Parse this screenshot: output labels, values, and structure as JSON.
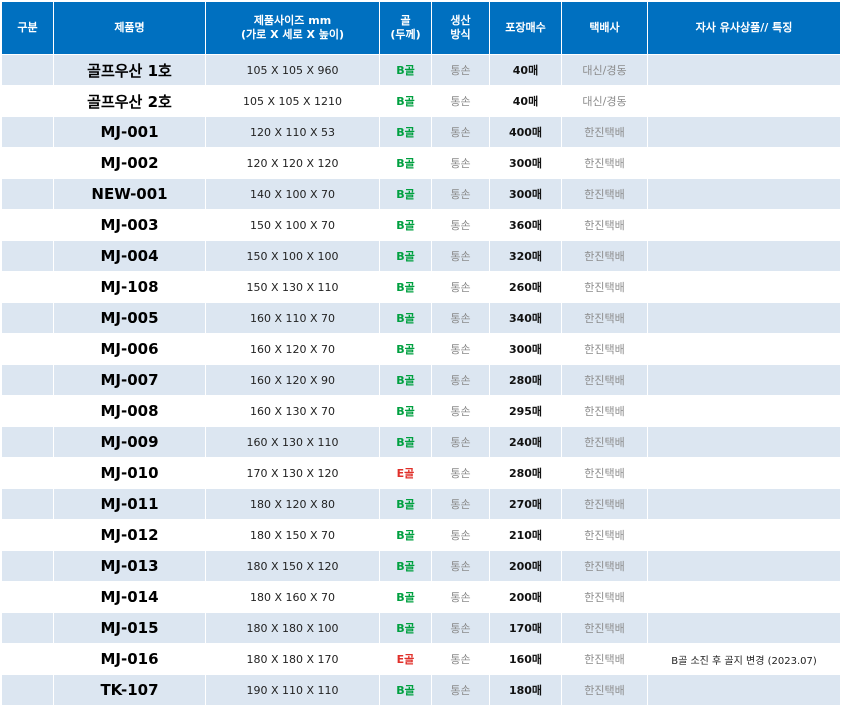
{
  "colors": {
    "header_bg": "#0070c0",
    "alt_row": "#dce6f1",
    "B": "#00a040",
    "E": "#e0302a"
  },
  "headers": [
    "구분",
    "제품명",
    "제품사이즈 mm\n(가로 X 세로 X 높이)",
    "골\n(두께)",
    "생산\n방식",
    "포장매수",
    "택배사",
    "자사 유사상품// 특징"
  ],
  "rows": [
    {
      "gubun": "",
      "name": "골프우산 1호",
      "size": "105 X 105 X 960",
      "goal": "B골",
      "method": "통손",
      "qty": "40매",
      "courier": "대신/경동",
      "note": ""
    },
    {
      "gubun": "",
      "name": "골프우산 2호",
      "size": "105 X 105 X 1210",
      "goal": "B골",
      "method": "통손",
      "qty": "40매",
      "courier": "대신/경동",
      "note": ""
    },
    {
      "gubun": "",
      "name": "MJ-001",
      "size": "120 X 110 X 53",
      "goal": "B골",
      "method": "통손",
      "qty": "400매",
      "courier": "한진택배",
      "note": ""
    },
    {
      "gubun": "",
      "name": "MJ-002",
      "size": "120 X 120 X 120",
      "goal": "B골",
      "method": "통손",
      "qty": "300매",
      "courier": "한진택배",
      "note": ""
    },
    {
      "gubun": "",
      "name": "NEW-001",
      "size": "140 X 100 X 70",
      "goal": "B골",
      "method": "통손",
      "qty": "300매",
      "courier": "한진택배",
      "note": ""
    },
    {
      "gubun": "",
      "name": "MJ-003",
      "size": "150 X 100 X 70",
      "goal": "B골",
      "method": "통손",
      "qty": "360매",
      "courier": "한진택배",
      "note": ""
    },
    {
      "gubun": "",
      "name": "MJ-004",
      "size": "150 X 100 X 100",
      "goal": "B골",
      "method": "통손",
      "qty": "320매",
      "courier": "한진택배",
      "note": ""
    },
    {
      "gubun": "",
      "name": "MJ-108",
      "size": "150 X 130 X 110",
      "goal": "B골",
      "method": "통손",
      "qty": "260매",
      "courier": "한진택배",
      "note": ""
    },
    {
      "gubun": "",
      "name": "MJ-005",
      "size": "160 X 110 X 70",
      "goal": "B골",
      "method": "통손",
      "qty": "340매",
      "courier": "한진택배",
      "note": ""
    },
    {
      "gubun": "",
      "name": "MJ-006",
      "size": "160 X 120 X 70",
      "goal": "B골",
      "method": "통손",
      "qty": "300매",
      "courier": "한진택배",
      "note": ""
    },
    {
      "gubun": "",
      "name": "MJ-007",
      "size": "160 X 120 X 90",
      "goal": "B골",
      "method": "통손",
      "qty": "280매",
      "courier": "한진택배",
      "note": ""
    },
    {
      "gubun": "",
      "name": "MJ-008",
      "size": "160 X 130 X 70",
      "goal": "B골",
      "method": "통손",
      "qty": "295매",
      "courier": "한진택배",
      "note": ""
    },
    {
      "gubun": "",
      "name": "MJ-009",
      "size": "160 X 130 X 110",
      "goal": "B골",
      "method": "통손",
      "qty": "240매",
      "courier": "한진택배",
      "note": ""
    },
    {
      "gubun": "",
      "name": "MJ-010",
      "size": "170 X 130 X 120",
      "goal": "E골",
      "method": "통손",
      "qty": "280매",
      "courier": "한진택배",
      "note": ""
    },
    {
      "gubun": "",
      "name": "MJ-011",
      "size": "180 X 120 X 80",
      "goal": "B골",
      "method": "통손",
      "qty": "270매",
      "courier": "한진택배",
      "note": ""
    },
    {
      "gubun": "",
      "name": "MJ-012",
      "size": "180 X 150 X 70",
      "goal": "B골",
      "method": "통손",
      "qty": "210매",
      "courier": "한진택배",
      "note": ""
    },
    {
      "gubun": "",
      "name": "MJ-013",
      "size": "180 X 150 X 120",
      "goal": "B골",
      "method": "통손",
      "qty": "200매",
      "courier": "한진택배",
      "note": ""
    },
    {
      "gubun": "",
      "name": "MJ-014",
      "size": "180 X 160 X 70",
      "goal": "B골",
      "method": "통손",
      "qty": "200매",
      "courier": "한진택배",
      "note": ""
    },
    {
      "gubun": "",
      "name": "MJ-015",
      "size": "180 X 180 X 100",
      "goal": "B골",
      "method": "통손",
      "qty": "170매",
      "courier": "한진택배",
      "note": ""
    },
    {
      "gubun": "",
      "name": "MJ-016",
      "size": "180 X 180 X 170",
      "goal": "E골",
      "method": "통손",
      "qty": "160매",
      "courier": "한진택배",
      "note": "B골 소진 후 골지 변경 (2023.07)"
    },
    {
      "gubun": "",
      "name": "TK-107",
      "size": "190 X 110 X 110",
      "goal": "B골",
      "method": "통손",
      "qty": "180매",
      "courier": "한진택배",
      "note": ""
    }
  ]
}
